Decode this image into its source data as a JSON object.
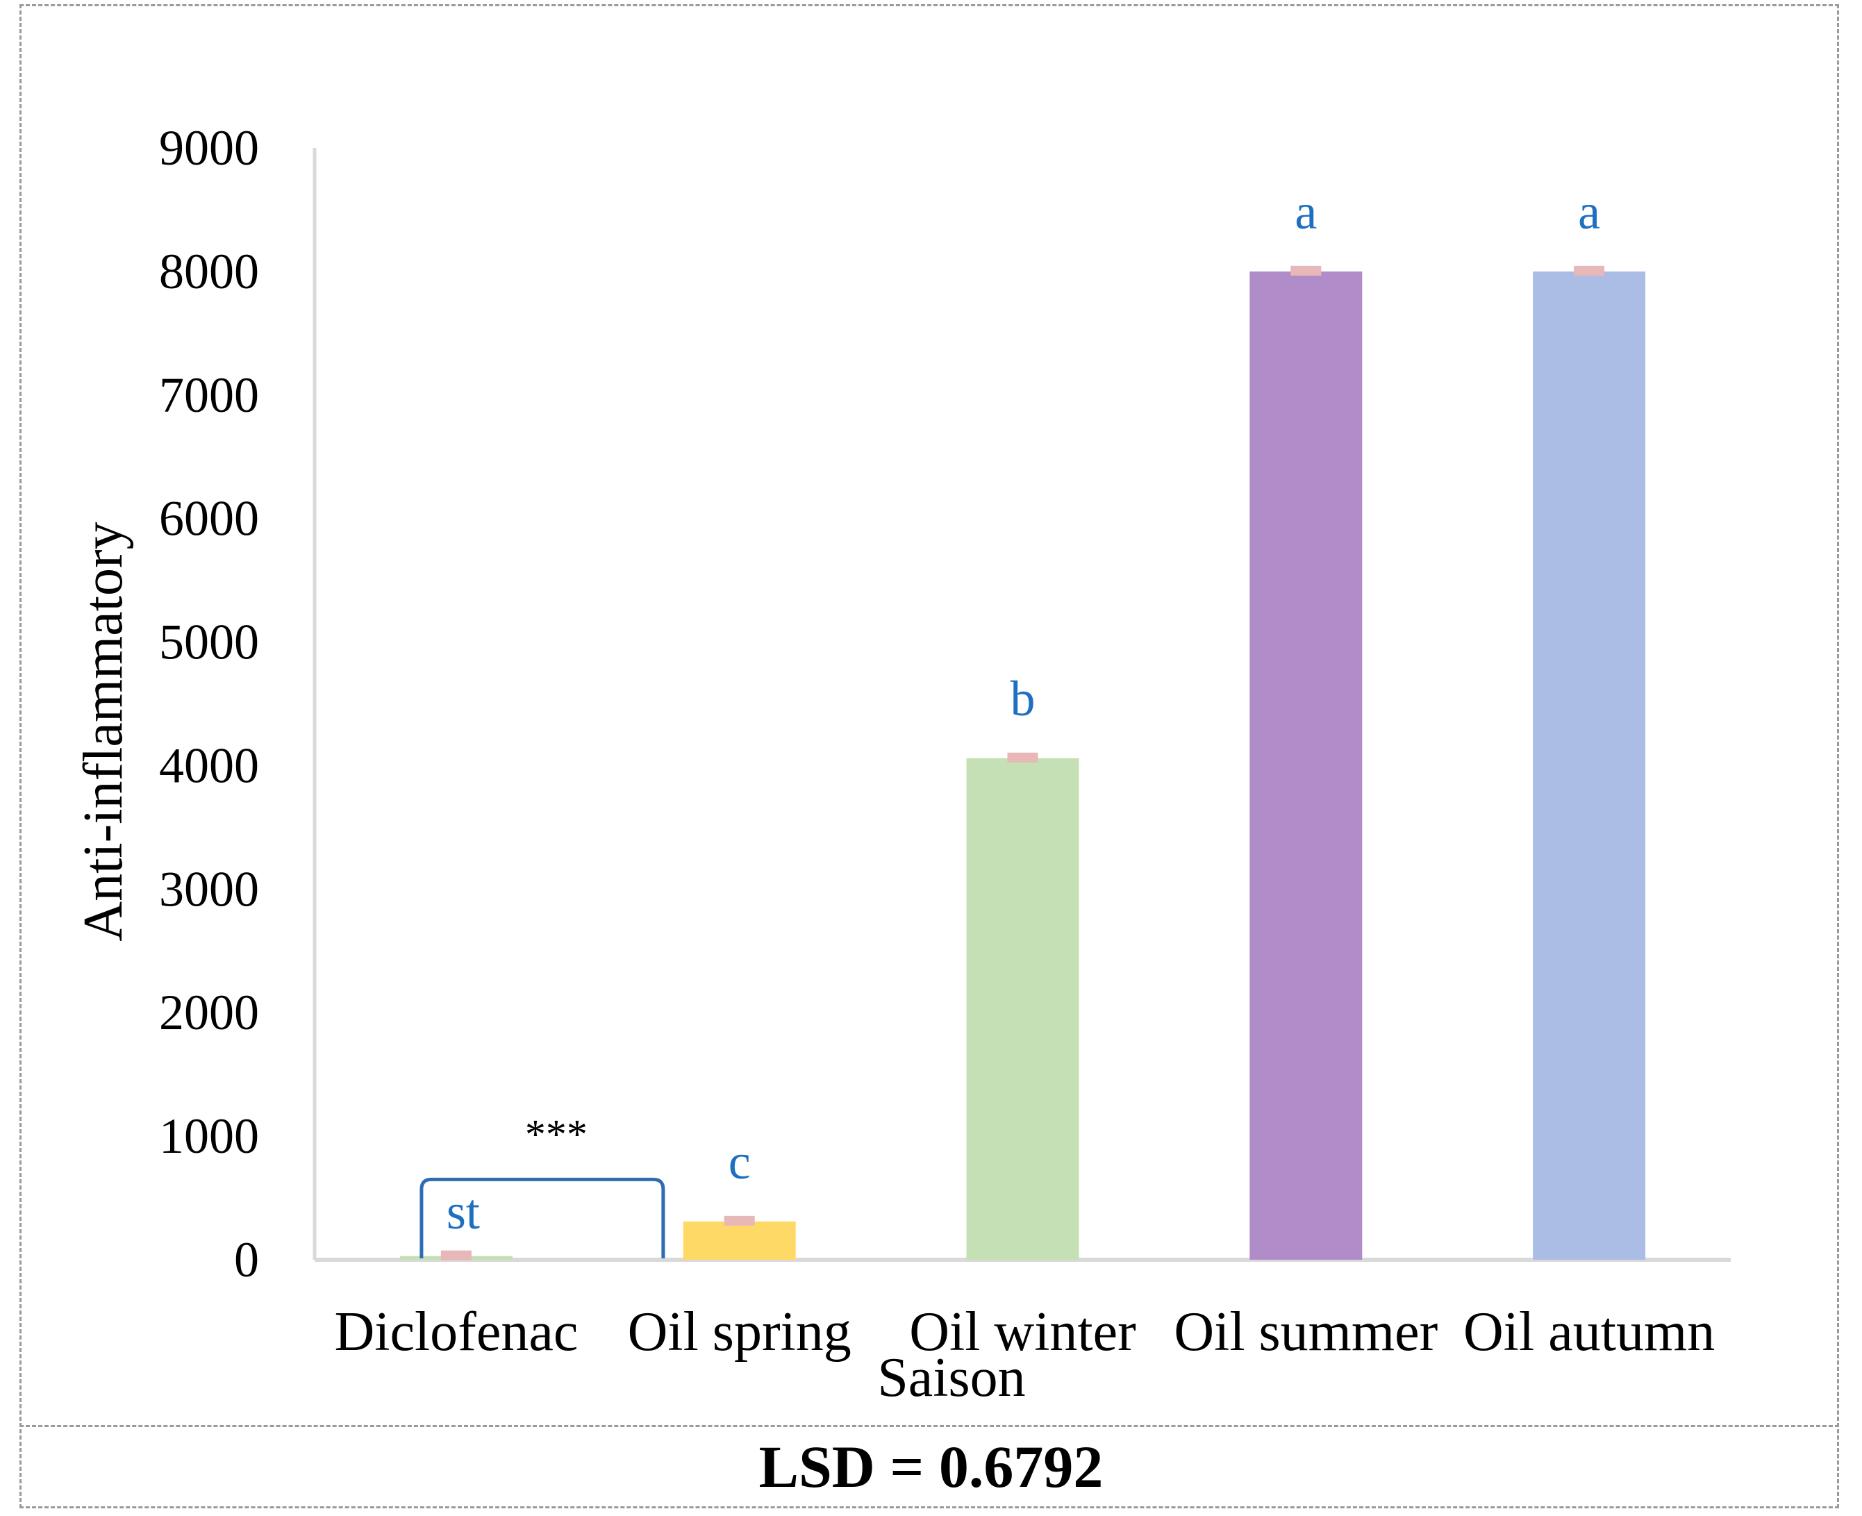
{
  "chart_data": {
    "type": "bar",
    "title": "",
    "xlabel": "Saison",
    "ylabel": "Anti-inflammatory",
    "ylim": [
      0,
      9000
    ],
    "yticks": [
      0,
      1000,
      2000,
      3000,
      4000,
      5000,
      6000,
      7000,
      8000,
      9000
    ],
    "categories": [
      "Diclofenac",
      "Oil spring",
      "Oil winter",
      "Oil summer",
      "Oil autumn"
    ],
    "values": [
      30,
      310,
      4060,
      8000,
      8000
    ],
    "colors": [
      "#c5e0b4",
      "#ffd966",
      "#c5e0b4",
      "#b08dc8",
      "#abbde4"
    ],
    "error_color": "#e8b7b7",
    "letters": [
      "st",
      "c",
      "b",
      "a",
      "a"
    ],
    "letter_color": "#1f6fc0",
    "bracket_label": "***",
    "bracket_color": "#2e6db4"
  },
  "footer": {
    "lsd": "LSD = 0.6792"
  }
}
